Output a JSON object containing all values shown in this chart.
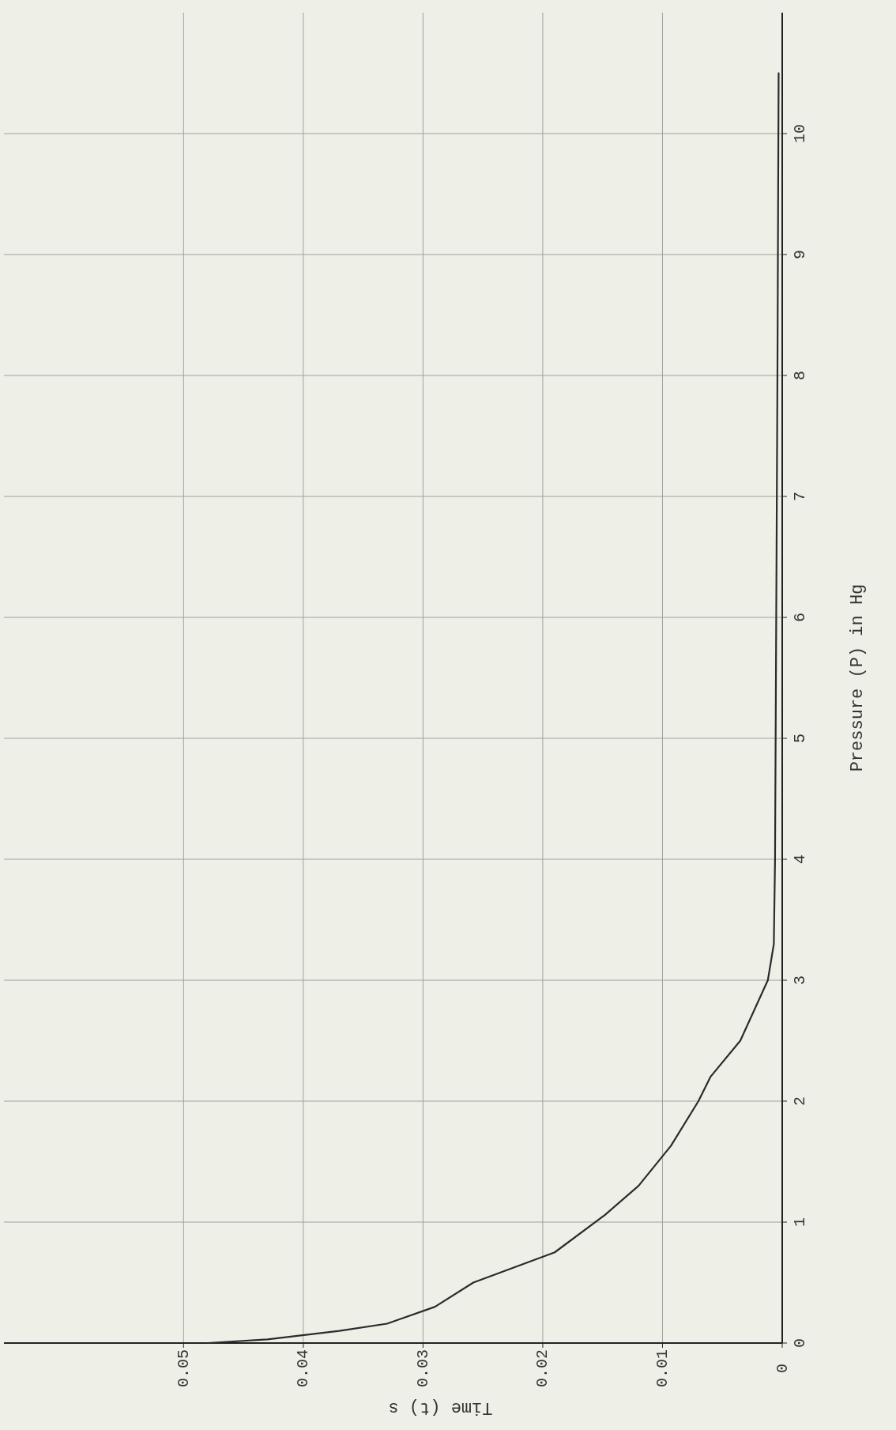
{
  "chart_data": {
    "type": "line",
    "xlabel": "Time (t) s",
    "ylabel": "Pressure (P) in Hg",
    "series": [
      {
        "color": "#2b2b2b",
        "x": [
          0.048,
          0.043,
          0.037,
          0.033,
          0.029,
          0.0258,
          0.019,
          0.0148,
          0.012,
          0.0093,
          0.007,
          0.006,
          0.0035,
          0.0012,
          0.0007,
          0.0006,
          0.0005,
          0.0004,
          0.0003
        ],
        "values": [
          0,
          0.03,
          0.1,
          0.16,
          0.3,
          0.5,
          0.75,
          1.06,
          1.3,
          1.63,
          2,
          2.2,
          2.5,
          3,
          3.3,
          4,
          6,
          8,
          10.5
        ]
      }
    ],
    "xlim": [
      0.065,
      0
    ],
    "ylim": [
      0,
      11
    ],
    "yticks": [
      0,
      1,
      2,
      3,
      4,
      5,
      6,
      7,
      8,
      9,
      10
    ],
    "xticks": [
      0.05,
      0.04,
      0.03,
      0.02,
      0.01,
      0
    ],
    "grid": true,
    "marker": "none",
    "line_style": "solid"
  }
}
